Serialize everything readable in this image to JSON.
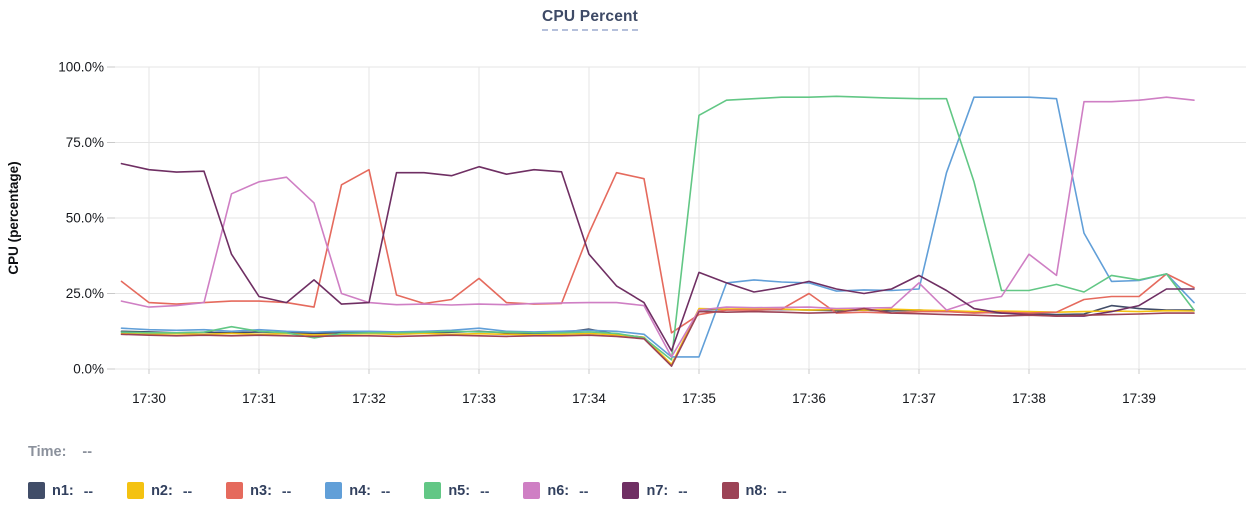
{
  "title": "CPU Percent",
  "time_readout": {
    "label": "Time:",
    "value": "--"
  },
  "legend": [
    {
      "id": "n1",
      "label": "n1:",
      "value": "--",
      "color": "#414d68"
    },
    {
      "id": "n2",
      "label": "n2:",
      "value": "--",
      "color": "#f4c211"
    },
    {
      "id": "n3",
      "label": "n3:",
      "value": "--",
      "color": "#e56a5d"
    },
    {
      "id": "n4",
      "label": "n4:",
      "value": "--",
      "color": "#619fd8"
    },
    {
      "id": "n5",
      "label": "n5:",
      "value": "--",
      "color": "#62c785"
    },
    {
      "id": "n6",
      "label": "n6:",
      "value": "--",
      "color": "#cf7fc4"
    },
    {
      "id": "n7",
      "label": "n7:",
      "value": "--",
      "color": "#6f2f63"
    },
    {
      "id": "n8",
      "label": "n8:",
      "value": "--",
      "color": "#9c4356"
    }
  ],
  "colors": {
    "grid": "#e5e5e5",
    "tick": "#c9c9c9",
    "title_text": "#3e4a66",
    "title_underline": "#b5c0db",
    "time_label": "#8b919c",
    "legend_label": "#32405e"
  },
  "chart_data": {
    "type": "line",
    "title": "CPU Percent",
    "xlabel": "",
    "ylabel": "CPU (percentage)",
    "ylim": [
      0,
      100
    ],
    "grid": true,
    "legend_position": "bottom",
    "x_ticks": [
      "17:30",
      "17:31",
      "17:32",
      "17:33",
      "17:34",
      "17:35",
      "17:36",
      "17:37",
      "17:38",
      "17:39"
    ],
    "y_ticks": [
      "100.0%",
      "75.0%",
      "50.0%",
      "25.0%",
      "0.0%"
    ],
    "y_tick_values": [
      100,
      75,
      50,
      25,
      0
    ],
    "x_unit": "minutes after 17:30",
    "x": [
      -0.25,
      0,
      0.25,
      0.5,
      0.75,
      1,
      1.25,
      1.5,
      1.75,
      2,
      2.25,
      2.5,
      2.75,
      3,
      3.25,
      3.5,
      3.75,
      4,
      4.25,
      4.5,
      4.75,
      5,
      5.25,
      5.5,
      5.75,
      6,
      6.25,
      6.5,
      6.75,
      7,
      7.25,
      7.5,
      7.75,
      8,
      8.25,
      8.5,
      8.75,
      9,
      9.25,
      9.5
    ],
    "series": [
      {
        "name": "n1",
        "color": "#414d68",
        "values": [
          12.5,
          12.3,
          12,
          12.2,
          12,
          12.3,
          12,
          11.8,
          12,
          12,
          11.8,
          12,
          12.2,
          12.5,
          12,
          11.8,
          12,
          13.2,
          11.5,
          10.5,
          1,
          19.5,
          19.8,
          19.5,
          19.7,
          19.5,
          19.3,
          19.5,
          19.2,
          19.5,
          19,
          18.8,
          18.5,
          18.3,
          18,
          18.2,
          21,
          20,
          19.5,
          19.5
        ]
      },
      {
        "name": "n2",
        "color": "#f4c211",
        "values": [
          11.8,
          11.5,
          11.7,
          11.5,
          11.8,
          11.5,
          11.7,
          11.3,
          11.5,
          11.7,
          11.5,
          11.8,
          11.5,
          11.7,
          11.5,
          11.3,
          11.5,
          11.8,
          11.3,
          10.5,
          1.5,
          20,
          19.8,
          20,
          19.8,
          19.5,
          19.7,
          19.5,
          19.8,
          19.5,
          19.3,
          19,
          19.2,
          19,
          18.8,
          19,
          19.2,
          19,
          19.3,
          19.2
        ]
      },
      {
        "name": "n3",
        "color": "#e56a5d",
        "values": [
          29,
          22,
          21.5,
          22,
          22.5,
          22.5,
          22,
          20.5,
          61,
          66,
          24.5,
          21.7,
          23,
          30,
          22,
          21.5,
          21.7,
          45,
          65,
          63,
          12,
          18,
          19.5,
          19.5,
          19.8,
          25,
          18.5,
          18.8,
          18.5,
          19,
          19,
          18.5,
          18.8,
          18.5,
          18.8,
          23,
          24,
          24,
          31.5,
          27
        ]
      },
      {
        "name": "n4",
        "color": "#619fd8",
        "values": [
          13.5,
          13,
          12.8,
          13,
          12.5,
          13,
          12.5,
          12.2,
          12.5,
          12.5,
          12.3,
          12.5,
          12.8,
          13.5,
          12.5,
          12.3,
          12.5,
          12.8,
          12.5,
          11.5,
          4,
          4,
          28.5,
          29.5,
          28.8,
          28.5,
          25.8,
          26.2,
          26,
          26.5,
          65,
          90,
          90,
          90,
          89.5,
          45,
          29,
          29.3,
          31.5,
          22
        ]
      },
      {
        "name": "n5",
        "color": "#62c785",
        "values": [
          12.2,
          12,
          12,
          12.2,
          14,
          12.5,
          12,
          10.3,
          11.8,
          12,
          12,
          12.2,
          12.5,
          12.3,
          12.2,
          12,
          12,
          12.3,
          11.8,
          10.3,
          3,
          84,
          89,
          89.5,
          90,
          90,
          90.3,
          90,
          89.7,
          89.5,
          89.5,
          62,
          26,
          26,
          28,
          25.5,
          31,
          29.5,
          31.5,
          19.5
        ]
      },
      {
        "name": "n6",
        "color": "#cf7fc4",
        "values": [
          22.5,
          20.5,
          21,
          22,
          58,
          62,
          63.5,
          55,
          25,
          22,
          21.3,
          21.5,
          21.2,
          21.5,
          21.3,
          21.7,
          21.9,
          22,
          22,
          21,
          4,
          19.5,
          20.5,
          20.3,
          20.4,
          20.5,
          20,
          20.2,
          20.3,
          28.5,
          19.5,
          22.5,
          24,
          38,
          31,
          88.5,
          88.5,
          89,
          90,
          89
        ]
      },
      {
        "name": "n7",
        "color": "#6f2f63",
        "values": [
          68,
          66,
          65.2,
          65.5,
          38,
          24,
          22,
          29.5,
          21.5,
          22,
          65,
          65,
          64,
          67,
          64.5,
          66,
          65.3,
          38,
          27.5,
          22,
          6,
          32,
          28.5,
          25.5,
          27,
          29,
          26.5,
          25,
          26.5,
          31,
          26,
          20,
          18.5,
          18,
          17.5,
          17.5,
          19,
          21,
          26.5,
          26.5
        ]
      },
      {
        "name": "n8",
        "color": "#9c4356",
        "values": [
          11.5,
          11.2,
          11,
          11.2,
          11,
          11.2,
          11,
          10.8,
          11,
          11,
          10.8,
          11,
          11.2,
          11,
          10.8,
          11,
          11,
          11.2,
          10.8,
          10,
          1,
          19,
          18.8,
          19,
          18.8,
          18.5,
          18.7,
          20,
          18.5,
          18.3,
          18,
          17.8,
          17.5,
          17.8,
          17.5,
          17.8,
          18,
          18.2,
          18.5,
          18.5
        ]
      }
    ]
  }
}
